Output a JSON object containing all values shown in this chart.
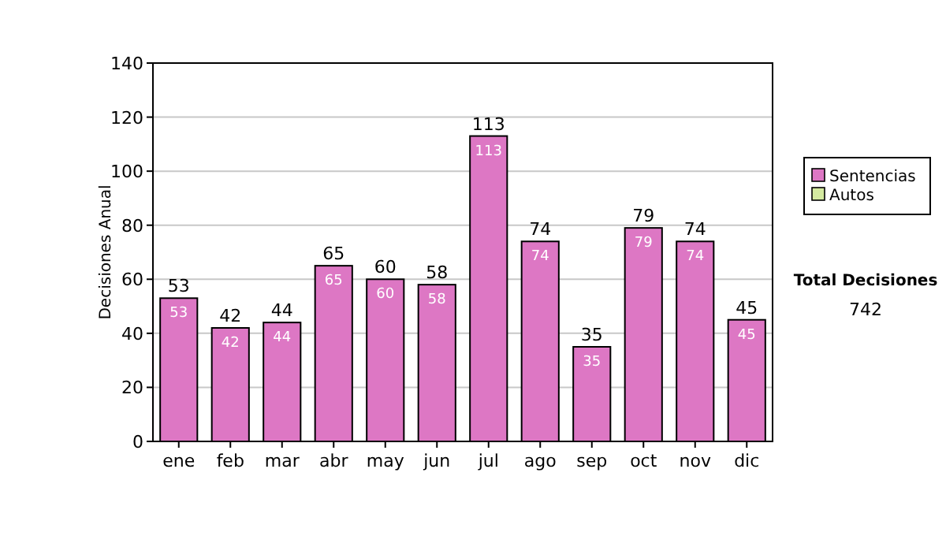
{
  "chart_data": {
    "type": "bar",
    "stacked": true,
    "ylabel": "Decisiones Anual",
    "categories": [
      "ene",
      "feb",
      "mar",
      "abr",
      "may",
      "jun",
      "jul",
      "ago",
      "sep",
      "oct",
      "nov",
      "dic"
    ],
    "series": [
      {
        "name": "Sentencias",
        "color": "#dd77c4",
        "values": [
          53,
          42,
          44,
          65,
          60,
          58,
          113,
          74,
          35,
          79,
          74,
          45
        ],
        "value_labels": [
          "53",
          "42",
          "44",
          "65",
          "60",
          "58",
          "113",
          "74",
          "35",
          "79",
          "74",
          "45"
        ]
      },
      {
        "name": "Autos",
        "color": "#d4eaa0",
        "values": [
          0,
          0,
          0,
          0,
          0,
          0,
          0,
          0,
          0,
          0,
          0,
          0
        ]
      }
    ],
    "totals": [
      "53",
      "42",
      "44",
      "65",
      "60",
      "58",
      "113",
      "74",
      "35",
      "79",
      "74",
      "45"
    ],
    "ylim": [
      0,
      140
    ],
    "yticks": [
      0,
      20,
      40,
      60,
      80,
      100,
      120,
      140
    ],
    "grid": "y",
    "legend": "right",
    "annotations": [
      "Total Decisiones",
      "742"
    ]
  }
}
